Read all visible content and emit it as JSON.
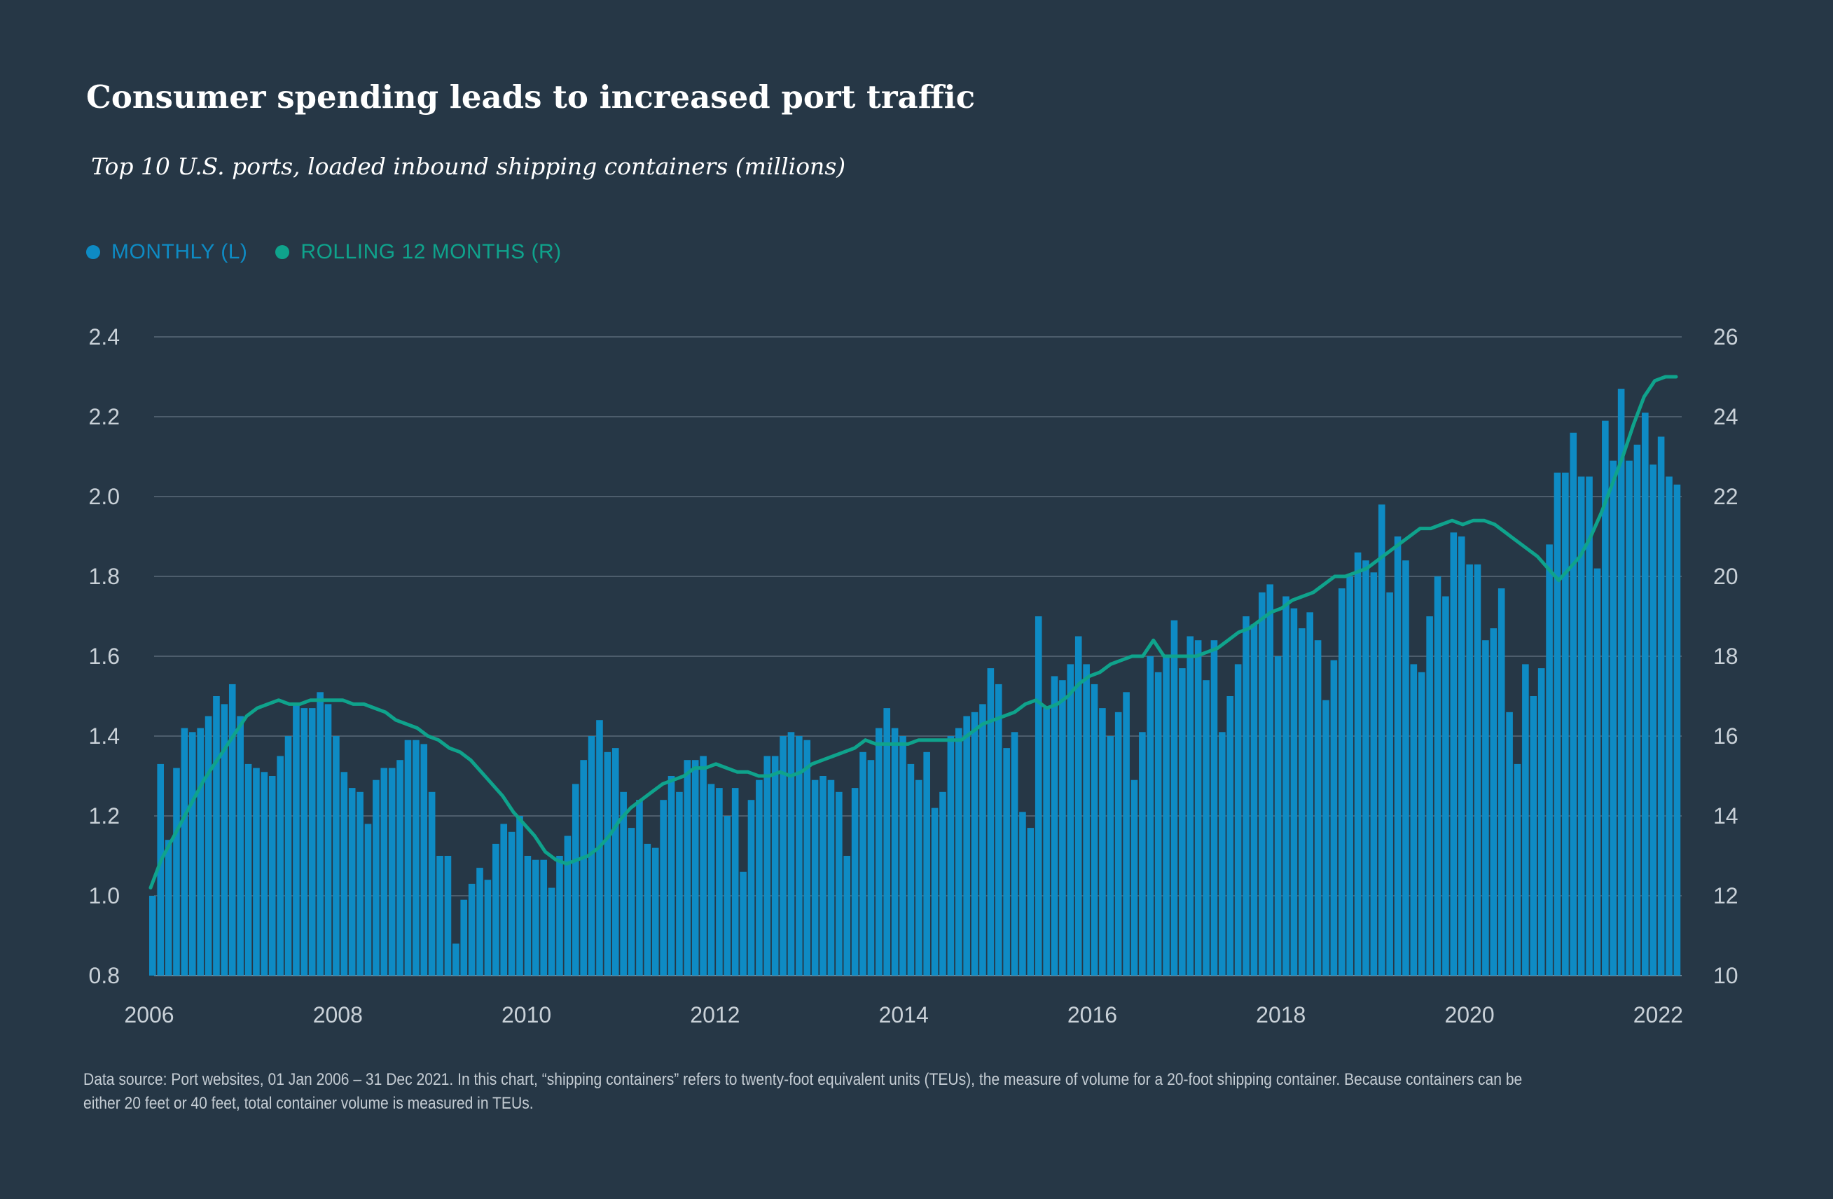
{
  "chart_data": {
    "type": "bar",
    "title": "Consumer spending leads to increased port traffic",
    "subtitle": "Top 10 U.S. ports, loaded inbound shipping containers (millions)",
    "legend": [
      {
        "label": "MONTHLY (L)",
        "color": "#0e8bc4"
      },
      {
        "label": "ROLLING 12 MONTHS (R)",
        "color": "#0fa38c"
      }
    ],
    "left_axis": {
      "min": 0.8,
      "max": 2.4,
      "ticks": [
        "2.4",
        "2.2",
        "2.0",
        "1.8",
        "1.6",
        "1.4",
        "1.2",
        "1.0",
        "0.8"
      ]
    },
    "right_axis": {
      "min": 10,
      "max": 26,
      "ticks": [
        "26",
        "24",
        "22",
        "20",
        "18",
        "16",
        "14",
        "12",
        "10"
      ]
    },
    "x_ticks": [
      "2006",
      "2008",
      "2010",
      "2012",
      "2014",
      "2016",
      "2018",
      "2020",
      "2022"
    ],
    "grid": true,
    "series": [
      {
        "name": "MONTHLY (L)",
        "type": "bar",
        "start": "2006-01",
        "values": [
          1.0,
          1.33,
          1.14,
          1.32,
          1.42,
          1.41,
          1.42,
          1.45,
          1.5,
          1.48,
          1.53,
          1.45,
          1.33,
          1.32,
          1.31,
          1.3,
          1.35,
          1.4,
          1.48,
          1.47,
          1.47,
          1.51,
          1.48,
          1.4,
          1.31,
          1.27,
          1.26,
          1.18,
          1.29,
          1.32,
          1.32,
          1.34,
          1.39,
          1.39,
          1.38,
          1.26,
          1.1,
          1.1,
          0.88,
          0.99,
          1.03,
          1.07,
          1.04,
          1.13,
          1.18,
          1.16,
          1.2,
          1.1,
          1.09,
          1.09,
          1.02,
          1.1,
          1.15,
          1.28,
          1.34,
          1.4,
          1.44,
          1.36,
          1.37,
          1.26,
          1.17,
          1.24,
          1.13,
          1.12,
          1.24,
          1.3,
          1.26,
          1.34,
          1.34,
          1.35,
          1.28,
          1.27,
          1.2,
          1.27,
          1.06,
          1.24,
          1.29,
          1.35,
          1.35,
          1.4,
          1.41,
          1.4,
          1.39,
          1.29,
          1.3,
          1.29,
          1.26,
          1.1,
          1.27,
          1.36,
          1.34,
          1.42,
          1.47,
          1.42,
          1.4,
          1.33,
          1.29,
          1.36,
          1.22,
          1.26,
          1.4,
          1.42,
          1.45,
          1.46,
          1.48,
          1.57,
          1.53,
          1.37,
          1.41,
          1.21,
          1.17,
          1.7,
          1.47,
          1.55,
          1.54,
          1.58,
          1.65,
          1.58,
          1.53,
          1.47,
          1.4,
          1.46,
          1.51,
          1.29,
          1.41,
          1.6,
          1.56,
          1.6,
          1.69,
          1.57,
          1.65,
          1.64,
          1.54,
          1.64,
          1.41,
          1.5,
          1.58,
          1.7,
          1.68,
          1.76,
          1.78,
          1.6,
          1.75,
          1.72,
          1.67,
          1.71,
          1.64,
          1.49,
          1.59,
          1.77,
          1.8,
          1.86,
          1.84,
          1.81,
          1.98,
          1.76,
          1.9,
          1.84,
          1.58,
          1.56,
          1.7,
          1.8,
          1.75,
          1.91,
          1.9,
          1.83,
          1.83,
          1.64,
          1.67,
          1.77,
          1.46,
          1.33,
          1.58,
          1.5,
          1.57,
          1.88,
          2.06,
          2.06,
          2.16,
          2.05,
          2.05,
          1.82,
          2.19,
          2.09,
          2.27,
          2.09,
          2.13,
          2.21,
          2.08,
          2.15,
          2.05,
          2.03
        ]
      },
      {
        "name": "ROLLING 12 MONTHS (R)",
        "type": "line",
        "start": "2006-01",
        "values": [
          12.2,
          12.9,
          13.4,
          13.9,
          14.4,
          14.9,
          15.3,
          15.7,
          16.1,
          16.5,
          16.7,
          16.8,
          16.9,
          16.8,
          16.8,
          16.9,
          16.9,
          16.9,
          16.9,
          16.8,
          16.8,
          16.7,
          16.6,
          16.4,
          16.3,
          16.2,
          16.0,
          15.9,
          15.7,
          15.6,
          15.4,
          15.1,
          14.8,
          14.5,
          14.1,
          13.8,
          13.5,
          13.1,
          12.9,
          12.8,
          12.9,
          13.0,
          13.2,
          13.5,
          13.9,
          14.2,
          14.4,
          14.6,
          14.8,
          14.9,
          15.0,
          15.2,
          15.2,
          15.3,
          15.2,
          15.1,
          15.1,
          15.0,
          15.0,
          15.1,
          15.0,
          15.1,
          15.3,
          15.4,
          15.5,
          15.6,
          15.7,
          15.9,
          15.8,
          15.8,
          15.8,
          15.8,
          15.9,
          15.9,
          15.9,
          15.9,
          15.9,
          16.1,
          16.3,
          16.4,
          16.5,
          16.6,
          16.8,
          16.9,
          16.7,
          16.8,
          17.0,
          17.3,
          17.5,
          17.6,
          17.8,
          17.9,
          18.0,
          18.0,
          18.4,
          18.0,
          18.0,
          18.0,
          18.0,
          18.1,
          18.2,
          18.4,
          18.6,
          18.7,
          18.9,
          19.1,
          19.2,
          19.4,
          19.5,
          19.6,
          19.8,
          20.0,
          20.0,
          20.1,
          20.2,
          20.4,
          20.6,
          20.8,
          21.0,
          21.2,
          21.2,
          21.3,
          21.4,
          21.3,
          21.4,
          21.4,
          21.3,
          21.1,
          20.9,
          20.7,
          20.5,
          20.2,
          19.9,
          20.2,
          20.5,
          21.0,
          21.6,
          22.3,
          23.0,
          23.8,
          24.5,
          24.9,
          25.0,
          25.0
        ]
      }
    ]
  },
  "footnote": "Data source: Port websites, 01 Jan 2006 – 31 Dec 2021. In this chart, “shipping containers” refers to twenty-foot equivalent units (TEUs), the measure of volume for a 20-foot shipping container. Because containers can be either 20 feet or 40 feet, total container volume is measured in TEUs."
}
